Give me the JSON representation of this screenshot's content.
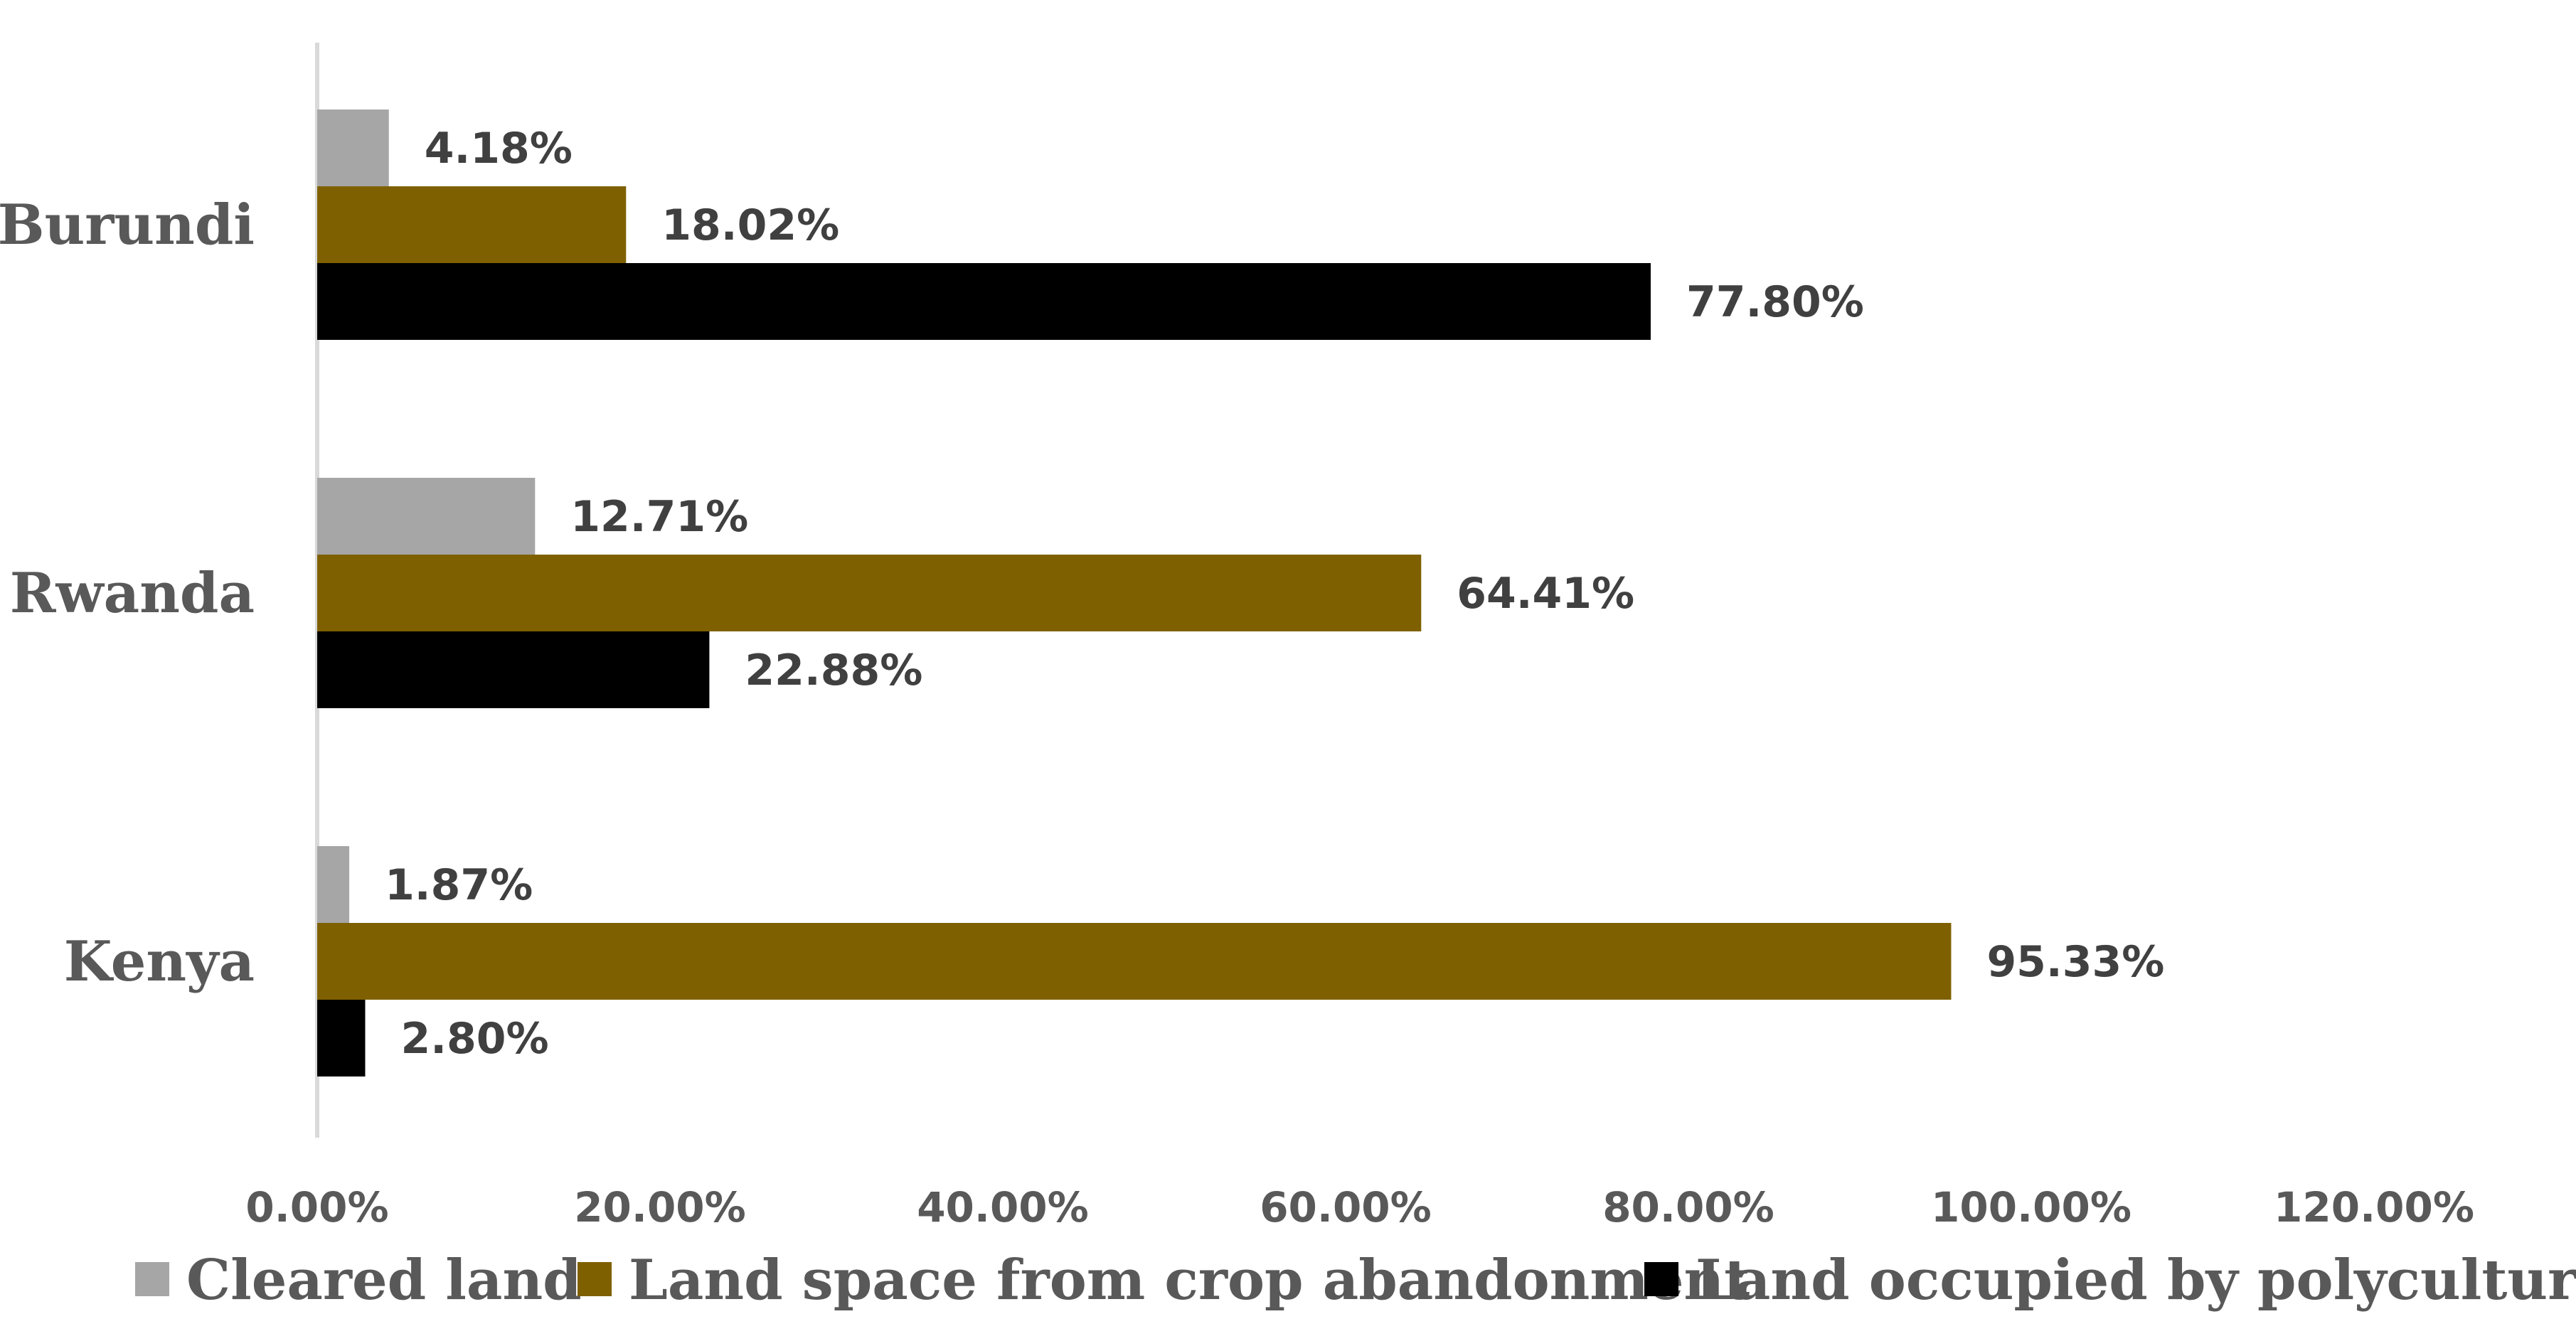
{
  "chart_data": {
    "type": "bar",
    "orientation": "horizontal",
    "categories": [
      "Burundi",
      "Rwanda",
      "Kenya"
    ],
    "series": [
      {
        "name": "Cleared land",
        "color": "#a6a6a6",
        "values": [
          4.18,
          12.71,
          1.87
        ],
        "labels": [
          "4.18%",
          "12.71%",
          "1.87%"
        ]
      },
      {
        "name": "Land space from crop abandonment",
        "color": "#7f6000",
        "values": [
          18.02,
          64.41,
          95.33
        ],
        "labels": [
          "18.02%",
          "64.41%",
          "95.33%"
        ]
      },
      {
        "name": "Land occupied by polyculture",
        "color": "#000000",
        "values": [
          77.8,
          22.88,
          2.8
        ],
        "labels": [
          "77.80%",
          "22.88%",
          "2.80%"
        ]
      }
    ],
    "xlim": [
      0,
      120
    ],
    "xticks": [
      0,
      20,
      40,
      60,
      80,
      100,
      120
    ],
    "xtick_labels": [
      "0.00%",
      "20.00%",
      "40.00%",
      "60.00%",
      "80.00%",
      "100.00%",
      "120.00%"
    ],
    "title": "",
    "xlabel": "",
    "ylabel": "",
    "grid": false,
    "legend_position": "bottom"
  }
}
